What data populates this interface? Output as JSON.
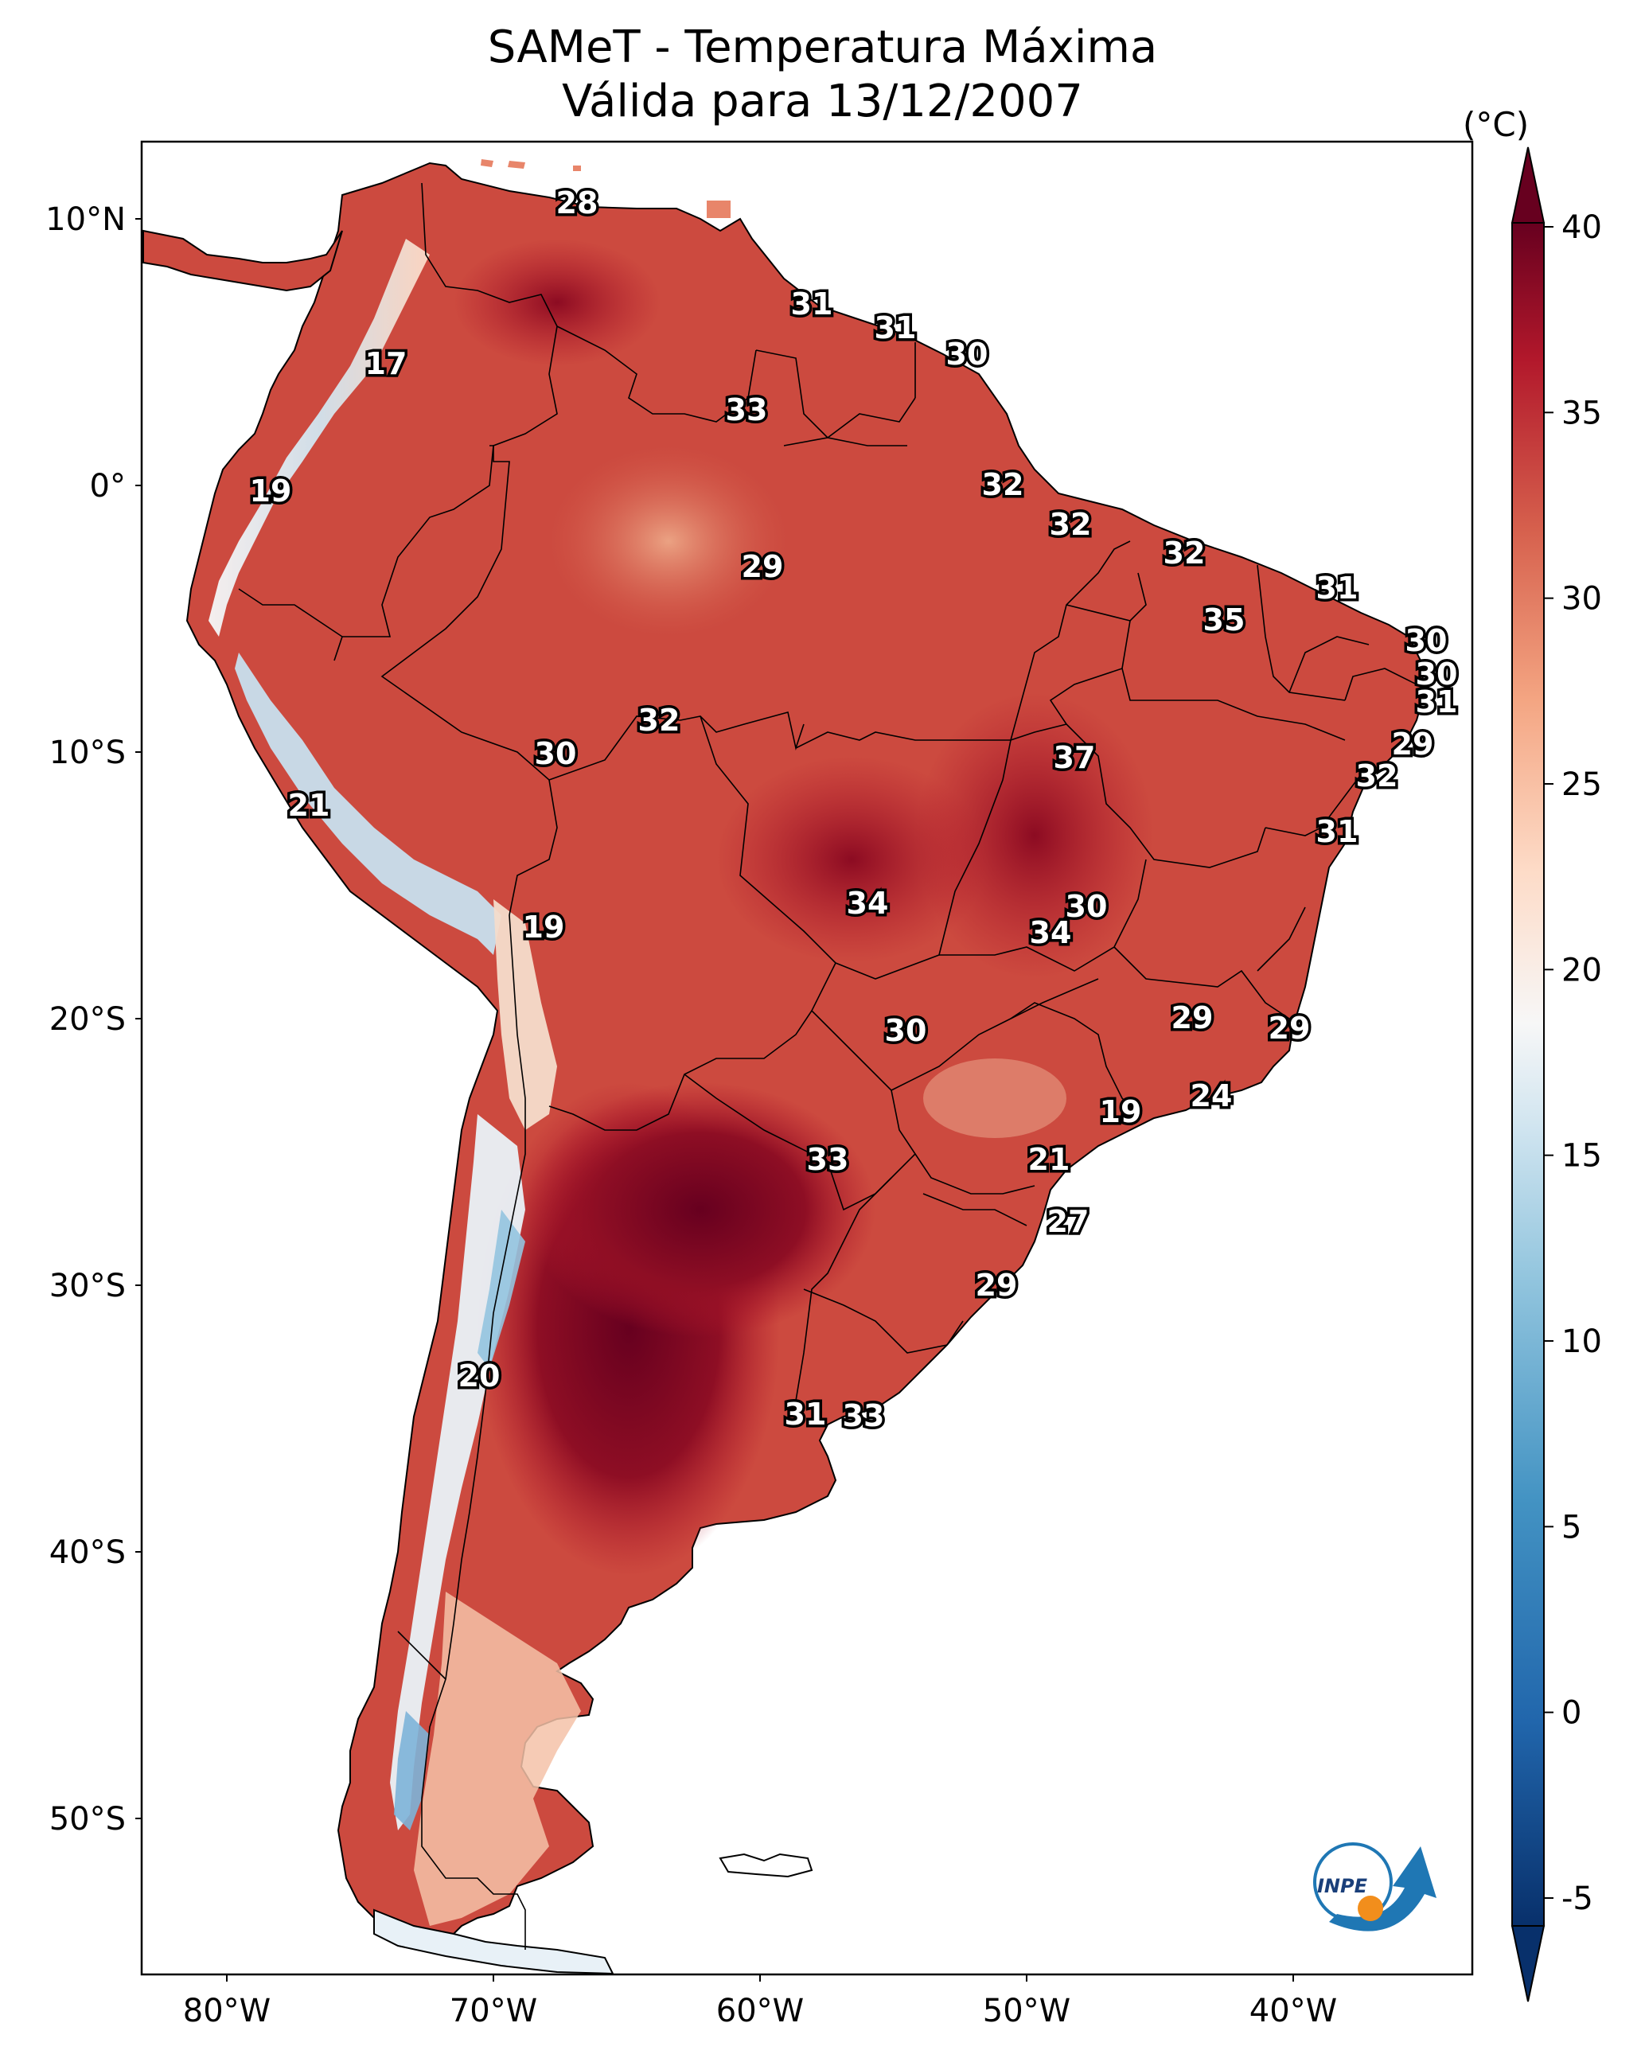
{
  "title": {
    "line1": "SAMeT - Temperatura Máxima",
    "line2": "Válida para 13/12/2007"
  },
  "colorbar": {
    "unit": "(°C)",
    "ticks": [
      "40",
      "35",
      "30",
      "25",
      "20",
      "15",
      "10",
      "5",
      "0",
      "-5"
    ],
    "min": -5,
    "max": 40
  },
  "axes": {
    "lat_ticks": [
      "10°N",
      "0°",
      "10°S",
      "20°S",
      "30°S",
      "40°S",
      "50°S"
    ],
    "lon_ticks": [
      "80°W",
      "70°W",
      "60°W",
      "50°W",
      "40°W"
    ]
  },
  "logo": {
    "text": "INPE"
  },
  "station_labels": [
    {
      "v": "28"
    },
    {
      "v": "17"
    },
    {
      "v": "19"
    },
    {
      "v": "31"
    },
    {
      "v": "31"
    },
    {
      "v": "30"
    },
    {
      "v": "33"
    },
    {
      "v": "32"
    },
    {
      "v": "32"
    },
    {
      "v": "32"
    },
    {
      "v": "29"
    },
    {
      "v": "31"
    },
    {
      "v": "35"
    },
    {
      "v": "30"
    },
    {
      "v": "30"
    },
    {
      "v": "31"
    },
    {
      "v": "32"
    },
    {
      "v": "29"
    },
    {
      "v": "30"
    },
    {
      "v": "37"
    },
    {
      "v": "32"
    },
    {
      "v": "21"
    },
    {
      "v": "31"
    },
    {
      "v": "34"
    },
    {
      "v": "30"
    },
    {
      "v": "19"
    },
    {
      "v": "34"
    },
    {
      "v": "30"
    },
    {
      "v": "29"
    },
    {
      "v": "29"
    },
    {
      "v": "24"
    },
    {
      "v": "19"
    },
    {
      "v": "33"
    },
    {
      "v": "21"
    },
    {
      "v": "27"
    },
    {
      "v": "29"
    },
    {
      "v": "20"
    },
    {
      "v": "31"
    },
    {
      "v": "33"
    }
  ]
}
